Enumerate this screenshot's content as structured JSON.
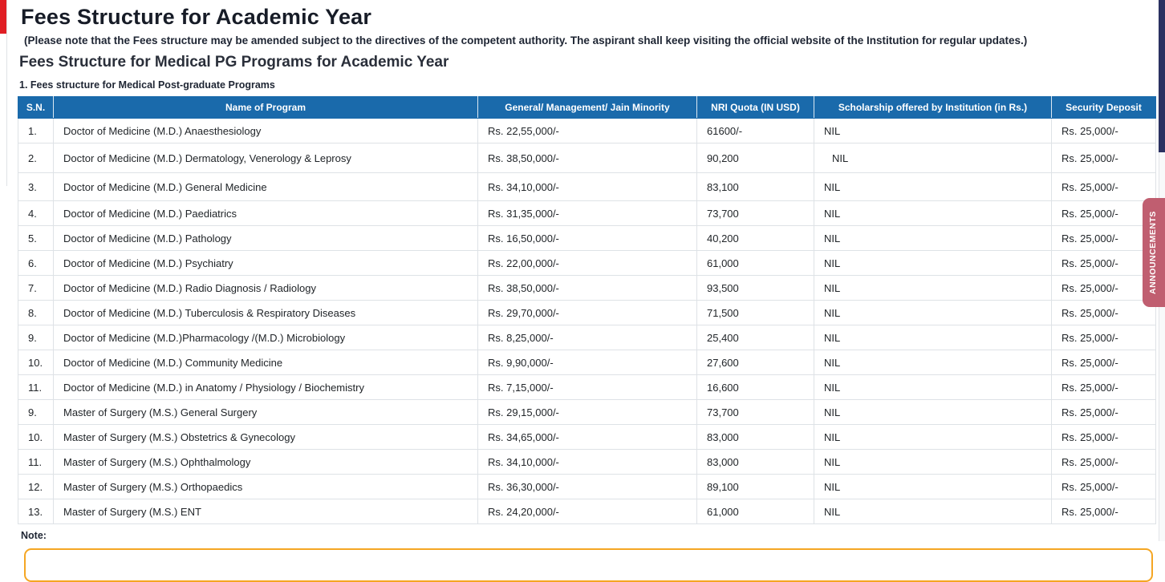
{
  "page": {
    "title": "Fees Structure for Academic Year",
    "disclaimer": "(Please note that the Fees structure may be amended subject to the directives of the competent authority. The aspirant shall keep visiting the official website of the Institution for regular updates.)",
    "subtitle": "Fees Structure for Medical PG Programs for Academic Year",
    "section_heading": "1. Fees structure for Medical Post-graduate Programs",
    "note_label": "Note:"
  },
  "announcements_tab": {
    "label": "ANNOUNCEMENTS"
  },
  "colors": {
    "header_blue": "#1a6aab",
    "announcement_rose": "#c05e70",
    "accent_red": "#e01e24",
    "note_border_orange": "#f5a623",
    "scroll_thumb_navy": "#2b3161",
    "cell_border": "#dee2e6"
  },
  "table": {
    "columns": [
      "S.N.",
      "Name of Program",
      "General/ Management/ Jain Minority",
      "NRI Quota (IN USD)",
      "Scholarship offered by Institution (in Rs.)",
      "Security Deposit"
    ],
    "rows": [
      {
        "sn": "1.",
        "program": "Doctor of Medicine (M.D.) Anaesthesiology",
        "general": "Rs. 22,55,000/-",
        "nri": "61600/-",
        "scholarship": "NIL",
        "security": "Rs. 25,000/-"
      },
      {
        "sn": "2.",
        "program": "Doctor of Medicine (M.D.) Dermatology, Venerology & Leprosy",
        "general": "Rs. 38,50,000/-",
        "nri": "90,200",
        "scholarship": "NIL",
        "security": "Rs. 25,000/-"
      },
      {
        "sn": "3.",
        "program": "Doctor of Medicine (M.D.) General Medicine",
        "general": "Rs. 34,10,000/-",
        "nri": "83,100",
        "scholarship": "NIL",
        "security": "Rs. 25,000/-"
      },
      {
        "sn": "4.",
        "program": "Doctor of Medicine (M.D.) Paediatrics",
        "general": "Rs. 31,35,000/-",
        "nri": "73,700",
        "scholarship": "NIL",
        "security": "Rs. 25,000/-"
      },
      {
        "sn": "5.",
        "program": "Doctor of Medicine (M.D.) Pathology",
        "general": "Rs. 16,50,000/-",
        "nri": "40,200",
        "scholarship": "NIL",
        "security": "Rs. 25,000/-"
      },
      {
        "sn": "6.",
        "program": "Doctor of Medicine (M.D.) Psychiatry",
        "general": "Rs. 22,00,000/-",
        "nri": "61,000",
        "scholarship": "NIL",
        "security": "Rs. 25,000/-"
      },
      {
        "sn": "7.",
        "program": "Doctor of Medicine (M.D.) Radio Diagnosis / Radiology",
        "general": "Rs. 38,50,000/-",
        "nri": "93,500",
        "scholarship": "NIL",
        "security": "Rs. 25,000/-"
      },
      {
        "sn": "8.",
        "program": "Doctor of Medicine (M.D.) Tuberculosis & Respiratory Diseases",
        "general": "Rs. 29,70,000/-",
        "nri": "71,500",
        "scholarship": "NIL",
        "security": "Rs. 25,000/-"
      },
      {
        "sn": "9.",
        "program": "Doctor of Medicine (M.D.)Pharmacology /(M.D.) Microbiology",
        "general": "Rs. 8,25,000/-",
        "nri": "25,400",
        "scholarship": "NIL",
        "security": "Rs. 25,000/-"
      },
      {
        "sn": "10.",
        "program": "Doctor of Medicine (M.D.) Community Medicine",
        "general": "Rs. 9,90,000/-",
        "nri": "27,600",
        "scholarship": "NIL",
        "security": "Rs. 25,000/-"
      },
      {
        "sn": "11.",
        "program": "Doctor of Medicine (M.D.) in Anatomy / Physiology / Biochemistry",
        "general": "Rs. 7,15,000/-",
        "nri": "16,600",
        "scholarship": "NIL",
        "security": "Rs. 25,000/-"
      },
      {
        "sn": "9.",
        "program": "Master of Surgery (M.S.) General Surgery",
        "general": "Rs. 29,15,000/-",
        "nri": "73,700",
        "scholarship": "NIL",
        "security": "Rs. 25,000/-"
      },
      {
        "sn": "10.",
        "program": "Master of Surgery (M.S.) Obstetrics & Gynecology",
        "general": "Rs. 34,65,000/-",
        "nri": "83,000",
        "scholarship": "NIL",
        "security": "Rs. 25,000/-"
      },
      {
        "sn": "11.",
        "program": "Master of Surgery (M.S.) Ophthalmology",
        "general": "Rs. 34,10,000/-",
        "nri": "83,000",
        "scholarship": "NIL",
        "security": "Rs. 25,000/-"
      },
      {
        "sn": "12.",
        "program": "Master of Surgery (M.S.) Orthopaedics",
        "general": "Rs. 36,30,000/-",
        "nri": "89,100",
        "scholarship": "NIL",
        "security": "Rs. 25,000/-"
      },
      {
        "sn": "13.",
        "program": "Master of Surgery (M.S.) ENT",
        "general": "Rs. 24,20,000/-",
        "nri": "61,000",
        "scholarship": "NIL",
        "security": "Rs. 25,000/-"
      }
    ]
  }
}
